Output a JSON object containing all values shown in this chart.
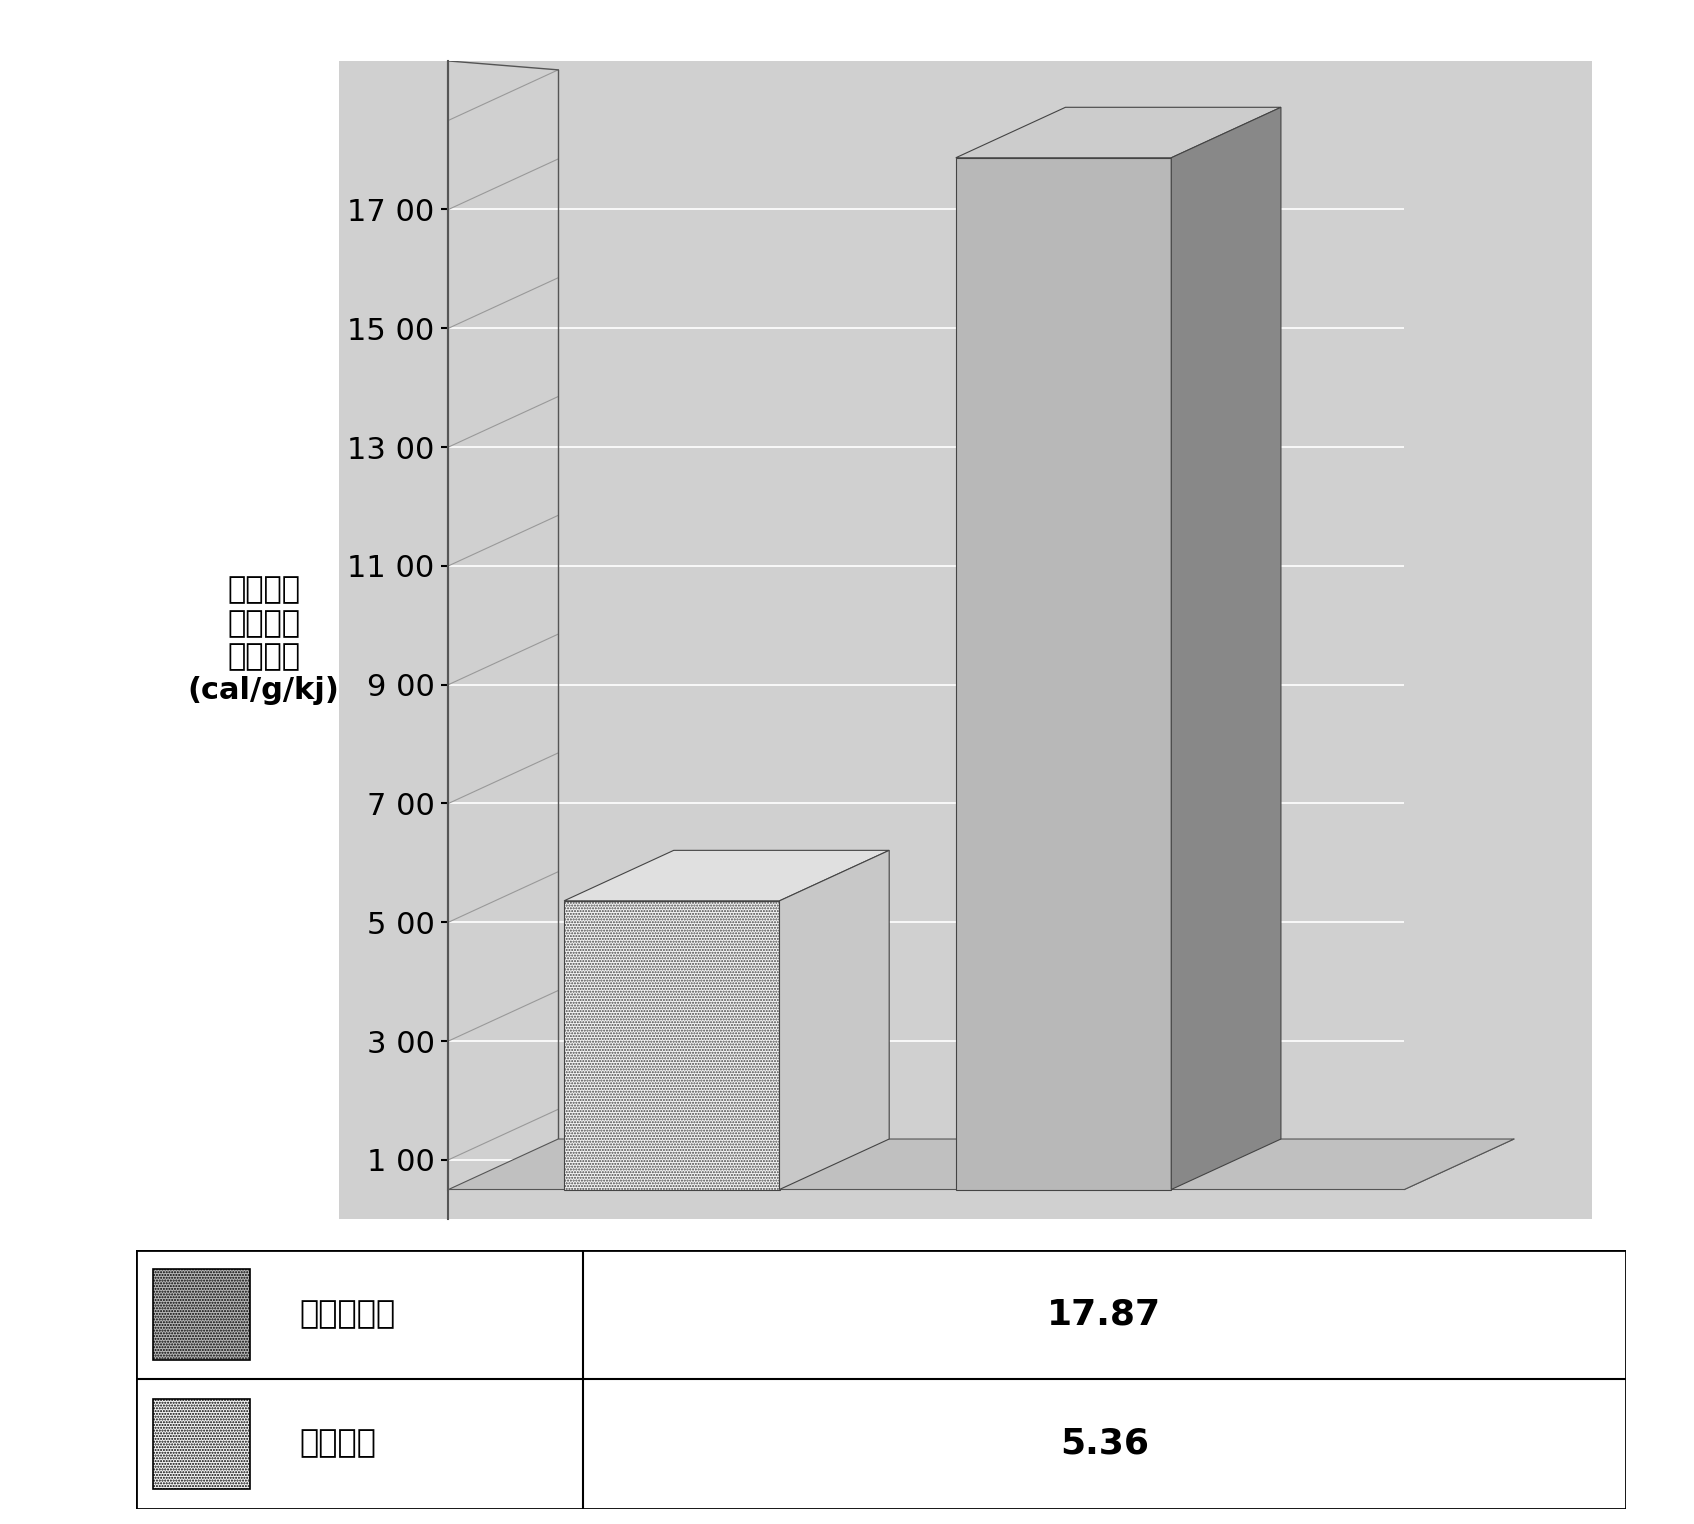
{
  "values": [
    5.36,
    17.87
  ],
  "ylabel_lines": [
    "单位能量",
    "消耗下产",
    "生的热値",
    "(cal/g/kj)"
  ],
  "yticks": [
    1.0,
    3.0,
    5.0,
    7.0,
    9.0,
    11.0,
    13.0,
    15.0,
    17.0
  ],
  "ytick_labels": [
    "1 00",
    "3 00",
    "5 00",
    "7 00",
    "9 00",
    "11 00",
    "13 00",
    "15 00",
    "17 00"
  ],
  "ymax": 19.5,
  "ymin": 0.0,
  "legend_label1": "传统制程",
  "legend_label2": "超音波制程",
  "table_value1": "5.36",
  "table_value2": "17.87",
  "chart_bg": "#d0d0d0",
  "floor_color": "#c0c0c0",
  "bar1_face": "#f5f5f5",
  "bar1_side": "#c8c8c8",
  "bar1_top": "#e0e0e0",
  "bar2_face": "#b8b8b8",
  "bar2_side": "#888888",
  "bar2_top": "#cccccc",
  "grid_color": "#ffffff",
  "perspective_line_color": "#999999",
  "spine_color": "#555555"
}
